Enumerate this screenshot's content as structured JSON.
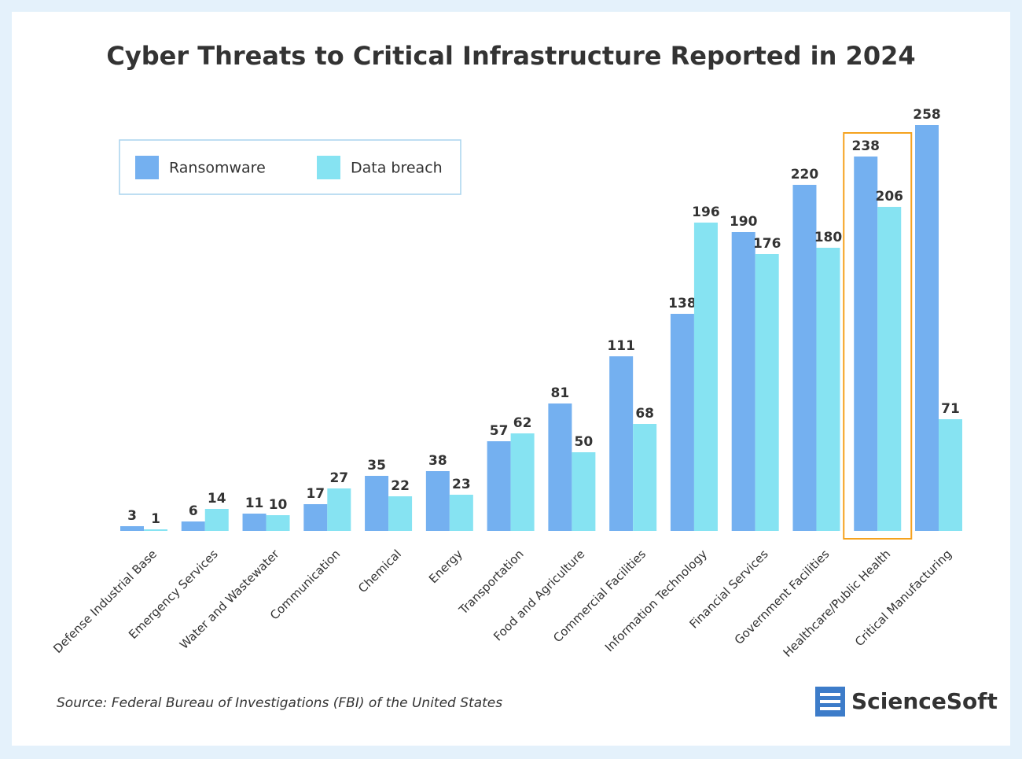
{
  "chart_data": {
    "type": "bar",
    "title": "Cyber Threats to Critical Infrastructure Reported in 2024",
    "categories": [
      "Defense Industrial Base",
      "Emergency Services",
      "Water and Wastewater",
      "Communication",
      "Chemical",
      "Energy",
      "Transportation",
      "Food and Agriculture",
      "Commercial Facilities",
      "Information Technology",
      "Financial Services",
      "Government Facilities",
      "Healthcare/Public Health",
      "Critical Manufacturing"
    ],
    "series": [
      {
        "name": "Ransomware",
        "color": "#74b0f0",
        "values": [
          3,
          6,
          11,
          17,
          35,
          38,
          57,
          81,
          111,
          138,
          190,
          220,
          238,
          258
        ]
      },
      {
        "name": "Data breach",
        "color": "#86e3f2",
        "values": [
          1,
          14,
          10,
          27,
          22,
          23,
          62,
          50,
          68,
          196,
          176,
          180,
          206,
          71
        ]
      }
    ],
    "highlight": {
      "index": 12,
      "color": "#f5a21e"
    },
    "legend": "top-left",
    "source": "Source: Federal Bureau of Investigations (FBI) of the United States",
    "brand": "ScienceSoft"
  }
}
